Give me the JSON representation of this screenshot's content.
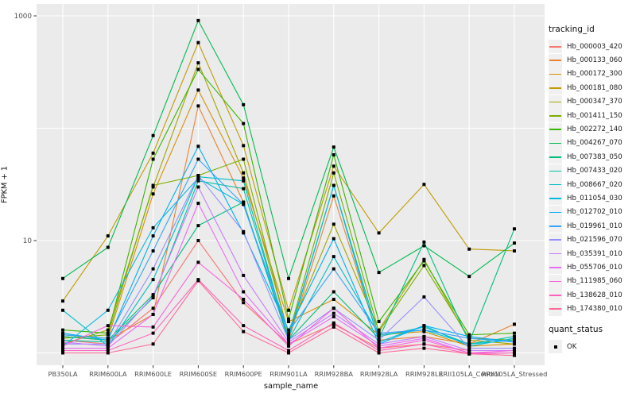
{
  "chart_data": {
    "type": "line",
    "title": "",
    "xlabel": "sample_name",
    "ylabel": "FPKM + 1",
    "y_scale": "log10",
    "ylim": [
      0.78,
      1250
    ],
    "grid": true,
    "panel_bg": "#EBEBEB",
    "grid_color": "#FFFFFF",
    "point_color": "#000000",
    "legend_position": "right",
    "legend_title": "tracking_id",
    "point_legend": {
      "title": "quant_status",
      "label": "OK"
    },
    "y_ticks": [
      {
        "value": 1000,
        "label": "1000"
      },
      {
        "value": 10,
        "label": "10"
      }
    ],
    "y_minor_gridlines": [
      1,
      100
    ],
    "categories": [
      "PB350LA",
      "RRIM600LA",
      "RRIM600LE",
      "RRIM600SE",
      "RRIM600PE",
      "RRIM901LA",
      "RRIM928BA",
      "RRIM928LA",
      "RRIM928LE",
      "RRII105LA_Control",
      "RRII105LA_Stressed"
    ],
    "series": [
      {
        "name": "Hb_000003_420",
        "color": "#F8766D",
        "values": [
          1.3,
          1.2,
          2.5,
          10,
          2.8,
          1.2,
          1.8,
          1.1,
          1.2,
          1.05,
          1.05
        ]
      },
      {
        "name": "Hb_000133_060",
        "color": "#EA8331",
        "values": [
          1.4,
          1.3,
          2.2,
          158,
          22,
          1.3,
          25,
          1.3,
          1.4,
          1.2,
          1.8
        ]
      },
      {
        "name": "Hb_000172_300",
        "color": "#D89000",
        "values": [
          1.45,
          1.35,
          26,
          219,
          36,
          1.9,
          3.0,
          1.45,
          1.55,
          1.15,
          1.2
        ]
      },
      {
        "name": "Hb_000181_080",
        "color": "#C09B00",
        "values": [
          2.9,
          11,
          60,
          578,
          70,
          2.4,
          46,
          11.7,
          31.6,
          8.4,
          8.1
        ]
      },
      {
        "name": "Hb_000347_370",
        "color": "#A3A500",
        "values": [
          1.2,
          1.6,
          30,
          382,
          40,
          1.5,
          14,
          1.6,
          6.8,
          1.3,
          1.2
        ]
      },
      {
        "name": "Hb_001411_150",
        "color": "#7CAE00",
        "values": [
          1.35,
          1.45,
          31,
          38,
          53,
          1.45,
          40,
          1.55,
          6.0,
          1.35,
          1.3
        ]
      },
      {
        "name": "Hb_002272_140",
        "color": "#39B600",
        "values": [
          1.6,
          1.5,
          53,
          334,
          110,
          2.0,
          58,
          1.9,
          6.6,
          1.45,
          1.5
        ]
      },
      {
        "name": "Hb_004267_070",
        "color": "#00BB4E",
        "values": [
          4.6,
          8.7,
          86,
          908,
          162,
          4.6,
          68,
          5.2,
          9.0,
          4.8,
          9.5
        ]
      },
      {
        "name": "Hb_007383_050",
        "color": "#00BF7D",
        "values": [
          1.4,
          1.3,
          3.3,
          13.6,
          22,
          1.3,
          3.5,
          1.35,
          9.7,
          1.25,
          12.7
        ]
      },
      {
        "name": "Hb_007433_020",
        "color": "#00C1A3",
        "values": [
          1.3,
          1.25,
          3.1,
          34,
          29,
          1.35,
          31,
          1.4,
          1.7,
          1.2,
          1.4
        ]
      },
      {
        "name": "Hb_008667_020",
        "color": "#00BFC4",
        "values": [
          2.4,
          1.15,
          4.5,
          37,
          34,
          1.3,
          7.2,
          1.45,
          1.6,
          1.2,
          1.3
        ]
      },
      {
        "name": "Hb_011054_030",
        "color": "#00BAE0",
        "values": [
          1.15,
          2.4,
          13,
          36,
          21,
          1.4,
          31,
          1.25,
          1.75,
          1.15,
          1.35
        ]
      },
      {
        "name": "Hb_012702_010",
        "color": "#00B0F6",
        "values": [
          1.5,
          1.3,
          11,
          69,
          11.7,
          1.6,
          10.4,
          1.2,
          1.75,
          1.4,
          1.25
        ]
      },
      {
        "name": "Hb_019961_010",
        "color": "#35A2FF",
        "values": [
          1.45,
          1.35,
          8.1,
          53,
          21,
          1.55,
          5.6,
          1.5,
          1.6,
          1.35,
          1.25
        ]
      },
      {
        "name": "Hb_021596_070",
        "color": "#9590FF",
        "values": [
          1.2,
          1.2,
          5.6,
          38,
          12,
          1.3,
          2.5,
          1.3,
          3.15,
          1.1,
          1.1
        ]
      },
      {
        "name": "Hb_035391_010",
        "color": "#C77CFF",
        "values": [
          1.25,
          1.15,
          3.2,
          30,
          4.9,
          1.25,
          2.25,
          1.2,
          1.4,
          1.05,
          1.05
        ]
      },
      {
        "name": "Hb_055706_010",
        "color": "#E76BF3",
        "values": [
          1.1,
          1.1,
          2.2,
          21.5,
          3.5,
          1.2,
          2.1,
          1.15,
          1.35,
          1.0,
          1.0
        ]
      },
      {
        "name": "Hb_111985_060",
        "color": "#FA62DB",
        "values": [
          1.15,
          1.75,
          1.7,
          6.4,
          3.0,
          1.15,
          2.5,
          1.1,
          1.3,
          1.0,
          1.05
        ]
      },
      {
        "name": "Hb_138628_010",
        "color": "#FF62BC",
        "values": [
          1.05,
          1.05,
          1.5,
          4.5,
          1.75,
          1.05,
          1.85,
          1.05,
          1.2,
          0.98,
          1.0
        ]
      },
      {
        "name": "Hb_174380_010",
        "color": "#FF6A98",
        "values": [
          1.0,
          1.0,
          1.2,
          4.4,
          1.55,
          1.0,
          1.7,
          1.0,
          1.1,
          0.98,
          0.95
        ]
      }
    ]
  }
}
